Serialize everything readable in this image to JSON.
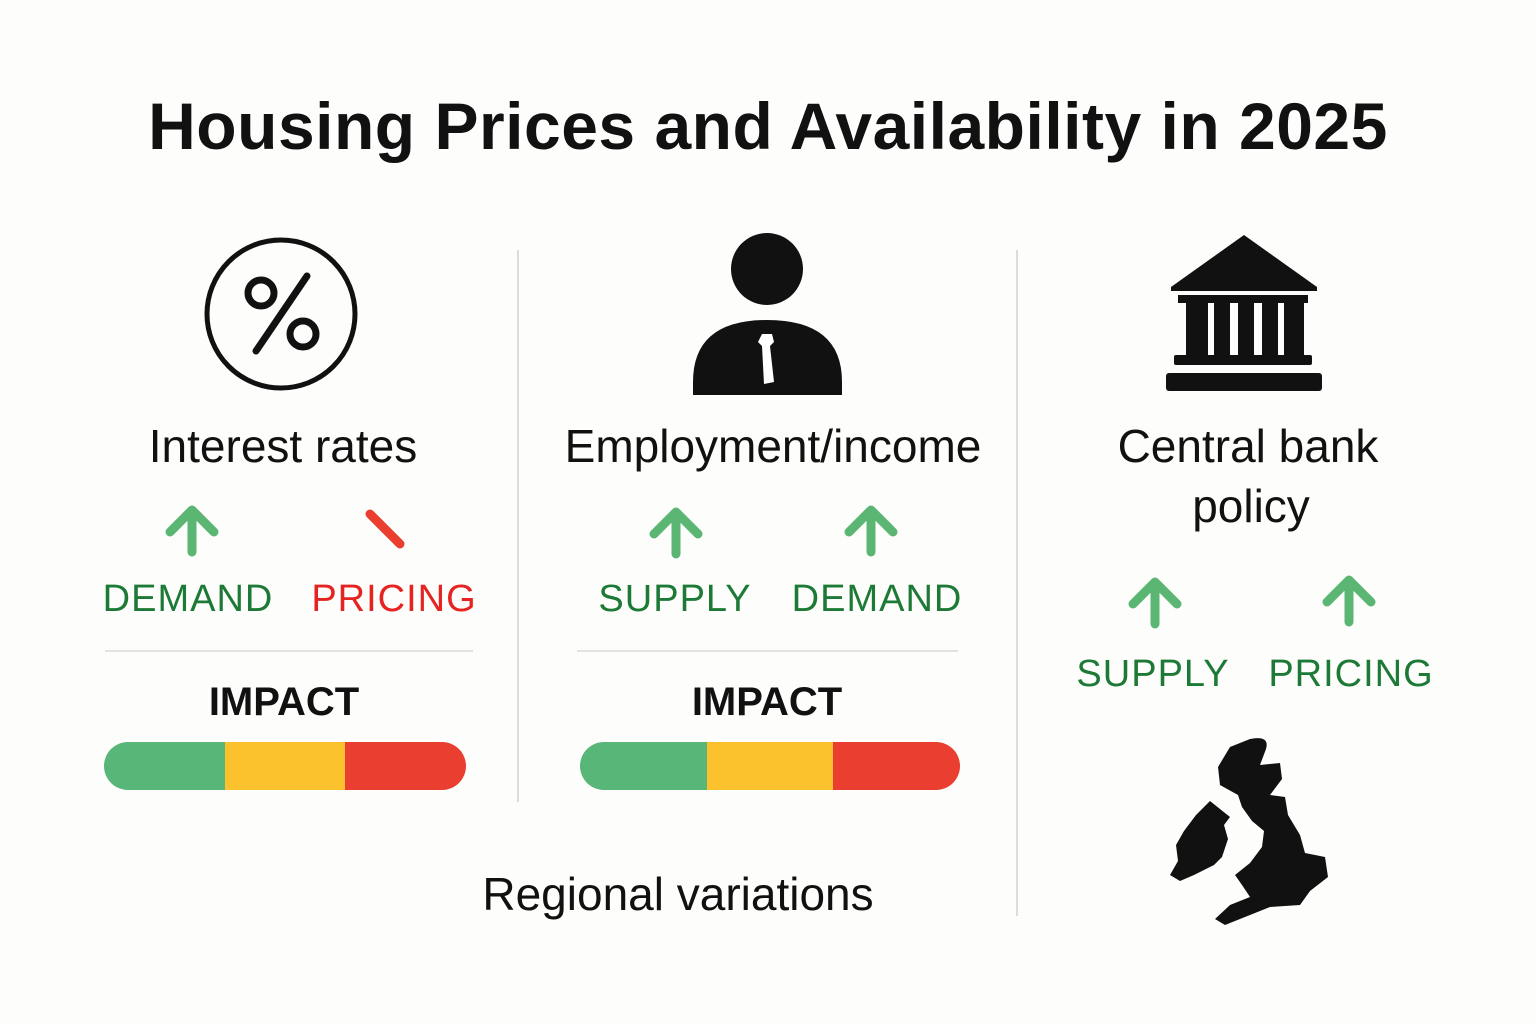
{
  "title": "Housing Prices and Availability in 2025",
  "colors": {
    "green_arrow": "#5bb673",
    "green_text": "#1d7a36",
    "red": "#e52320",
    "bar_green": "#57b678",
    "bar_yellow": "#fcc22d",
    "bar_red": "#e93e30"
  },
  "columns": [
    {
      "icon": "percent-icon",
      "title": "Interest rates",
      "indicators": [
        {
          "icon": "arrow-up-icon",
          "label": "DEMAND",
          "tone": "green"
        },
        {
          "icon": "slash-down-icon",
          "label": "PRICING",
          "tone": "red"
        }
      ],
      "impact_label": "IMPACT",
      "impact_segments": [
        "low",
        "medium",
        "high"
      ]
    },
    {
      "icon": "person-icon",
      "title": "Employment/income",
      "indicators": [
        {
          "icon": "arrow-up-icon",
          "label": "SUPPLY",
          "tone": "green"
        },
        {
          "icon": "arrow-up-icon",
          "label": "DEMAND",
          "tone": "green"
        }
      ],
      "impact_label": "IMPACT",
      "impact_segments": [
        "low",
        "medium",
        "high"
      ]
    },
    {
      "icon": "bank-icon",
      "title_line1": "Central bank",
      "title_line2": "policy",
      "indicators": [
        {
          "icon": "arrow-up-icon",
          "label": "SUPPLY",
          "tone": "green"
        },
        {
          "icon": "arrow-up-icon",
          "label": "PRICING",
          "tone": "green"
        }
      ],
      "map_icon": "uk-map-icon"
    }
  ],
  "footer": "Regional variations"
}
